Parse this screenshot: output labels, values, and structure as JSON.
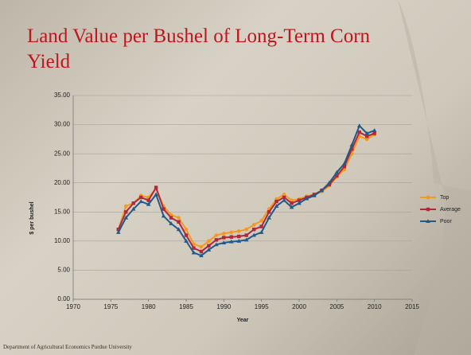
{
  "title": "Land Value per Bushel of Long-Term Corn Yield",
  "footer": "Department of Agricultural Economics Purdue University",
  "chart_data": {
    "type": "line",
    "x_label": "Year",
    "y_label": "$ per bushel",
    "x": [
      1976,
      1977,
      1978,
      1979,
      1980,
      1981,
      1982,
      1983,
      1984,
      1985,
      1986,
      1987,
      1988,
      1989,
      1990,
      1991,
      1992,
      1993,
      1994,
      1995,
      1996,
      1997,
      1998,
      1999,
      2000,
      2001,
      2002,
      2003,
      2004,
      2005,
      2006,
      2007,
      2008,
      2009,
      2010
    ],
    "series": [
      {
        "name": "Top",
        "color": "#f39a1e",
        "marker": "circle",
        "values": [
          12,
          16,
          16.5,
          17.8,
          17.5,
          19,
          16,
          14.5,
          14,
          12,
          9.5,
          9,
          10,
          11,
          11.3,
          11.5,
          11.7,
          12,
          12.8,
          13.5,
          15.5,
          17.2,
          18,
          17,
          17.2,
          17.7,
          18,
          18.5,
          19.5,
          21,
          22.3,
          25,
          28,
          27.5,
          28.3
        ]
      },
      {
        "name": "Average",
        "color": "#b0283a",
        "marker": "square",
        "values": [
          12,
          15,
          16.5,
          17.5,
          17,
          19.2,
          15.5,
          14,
          13.3,
          11,
          8.8,
          8.2,
          9.2,
          10.2,
          10.6,
          10.7,
          10.8,
          11,
          12,
          12.5,
          15,
          16.8,
          17.5,
          16.5,
          17,
          17.5,
          18,
          18.7,
          19.7,
          21.2,
          22.8,
          25.8,
          28.7,
          28,
          28.5
        ]
      },
      {
        "name": "Poor",
        "color": "#1f5a8a",
        "marker": "triangle",
        "values": [
          11.5,
          14,
          15.5,
          16.8,
          16.3,
          18,
          14.3,
          13,
          12,
          10,
          8,
          7.5,
          8.5,
          9.4,
          9.7,
          9.9,
          10,
          10.2,
          11,
          11.5,
          14,
          16,
          17,
          15.8,
          16.5,
          17.3,
          17.8,
          18.7,
          20,
          21.8,
          23.3,
          26.5,
          29.8,
          28.5,
          29
        ]
      }
    ],
    "xlim": [
      1970,
      2015
    ],
    "xticks": [
      1970,
      1975,
      1980,
      1985,
      1990,
      1995,
      2000,
      2005,
      2010,
      2015
    ],
    "ylim": [
      0,
      35
    ],
    "yticks": [
      {
        "value": 0,
        "label": "0.00"
      },
      {
        "value": 5,
        "label": "5.00"
      },
      {
        "value": 10,
        "label": "10.00"
      },
      {
        "value": 15,
        "label": "15.00"
      },
      {
        "value": 20,
        "label": "20.00"
      },
      {
        "value": 25,
        "label": "25.00"
      },
      {
        "value": 30,
        "label": "30.00"
      },
      {
        "value": 35,
        "label": "35.00"
      }
    ],
    "grid": true,
    "legend": "right"
  }
}
